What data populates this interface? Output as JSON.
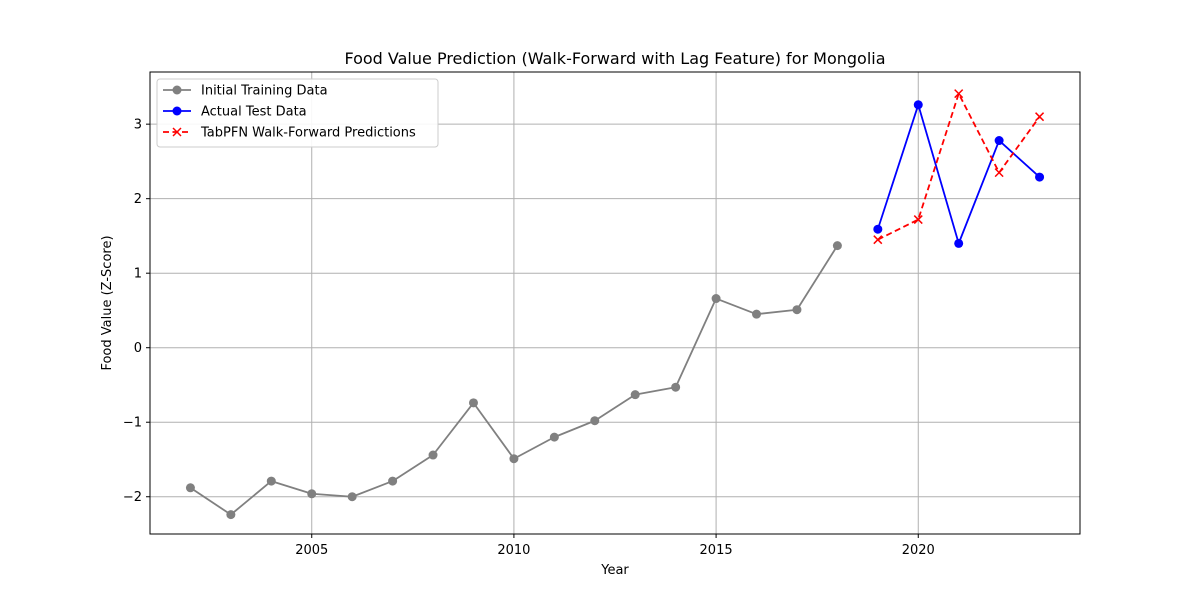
{
  "chart_data": {
    "type": "line",
    "title": "Food Value Prediction (Walk-Forward with Lag Feature) for Mongolia",
    "xlabel": "Year",
    "ylabel": "Food Value (Z-Score)",
    "xlim": [
      2001.0,
      2024.0
    ],
    "ylim": [
      -2.5,
      3.7
    ],
    "xticks": [
      2005,
      2010,
      2015,
      2020
    ],
    "yticks": [
      -2,
      -1,
      0,
      1,
      2,
      3
    ],
    "grid": true,
    "legend_position": "top-left",
    "series": [
      {
        "name": "Initial Training Data",
        "color": "#808080",
        "line_style": "solid",
        "marker": "circle",
        "x": [
          2002,
          2003,
          2004,
          2005,
          2006,
          2007,
          2008,
          2009,
          2010,
          2011,
          2012,
          2013,
          2014,
          2015,
          2016,
          2017,
          2018
        ],
        "y": [
          -1.88,
          -2.24,
          -1.79,
          -1.96,
          -2.0,
          -1.79,
          -1.44,
          -0.74,
          -1.49,
          -1.2,
          -0.98,
          -0.63,
          -0.53,
          0.66,
          0.45,
          0.51,
          1.37
        ]
      },
      {
        "name": "Actual Test Data",
        "color": "#0000ff",
        "line_style": "solid",
        "marker": "circle",
        "x": [
          2019,
          2020,
          2021,
          2022,
          2023
        ],
        "y": [
          1.59,
          3.26,
          1.4,
          2.78,
          2.29
        ]
      },
      {
        "name": "TabPFN Walk-Forward Predictions",
        "color": "#ff0000",
        "line_style": "dashed",
        "marker": "x",
        "x": [
          2019,
          2020,
          2021,
          2022,
          2023
        ],
        "y": [
          1.45,
          1.72,
          3.41,
          2.35,
          3.1
        ]
      }
    ]
  }
}
